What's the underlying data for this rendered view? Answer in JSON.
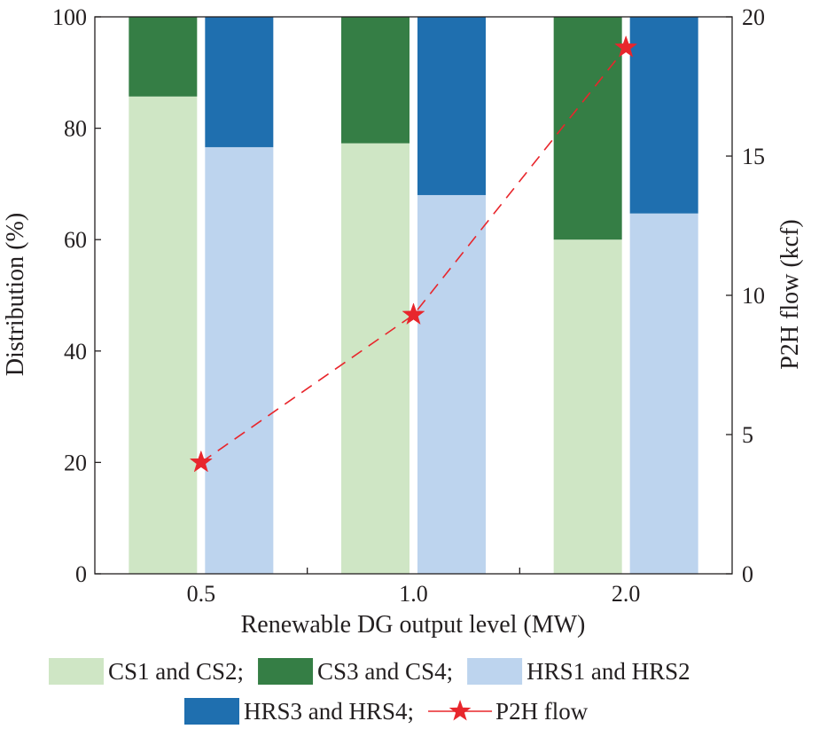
{
  "chart_data": {
    "type": "bar",
    "categories": [
      "0.5",
      "1.0",
      "2.0"
    ],
    "xlabel": "Renewable DG output level (MW)",
    "ylabel": "Distribution (%)",
    "y2label": "P2H flow (kcf)",
    "ylim": [
      0,
      100
    ],
    "y2lim": [
      0,
      20
    ],
    "yticks": [
      "0",
      "20",
      "40",
      "60",
      "80",
      "100"
    ],
    "y2ticks": [
      "0",
      "5",
      "10",
      "15",
      "20"
    ],
    "stacks": [
      {
        "name": "CS",
        "series": [
          {
            "name": "CS1 and CS2",
            "values": [
              85.7,
              77.3,
              60.0
            ],
            "color": "#cfe6c5"
          },
          {
            "name": "CS3 and CS4",
            "values": [
              14.3,
              22.7,
              40.0
            ],
            "color": "#357e45"
          }
        ]
      },
      {
        "name": "HRS",
        "series": [
          {
            "name": "HRS1 and HRS2",
            "values": [
              76.6,
              68.0,
              64.7
            ],
            "color": "#bdd4ee"
          },
          {
            "name": "HRS3 and HRS4",
            "values": [
              23.4,
              32.0,
              35.3
            ],
            "color": "#1f6faf"
          }
        ]
      }
    ],
    "line_series": {
      "name": "P2H flow",
      "axis": "right",
      "values": [
        4.0,
        9.3,
        18.9
      ],
      "color": "#e8262c",
      "style": "dashed",
      "marker": "star"
    },
    "legend": {
      "placement": "bottom",
      "rows": [
        [
          {
            "label": "CS1 and CS2;",
            "color": "#cfe6c5",
            "kind": "box"
          },
          {
            "label": "CS3 and CS4;",
            "color": "#357e45",
            "kind": "box"
          },
          {
            "label": "HRS1 and HRS2",
            "color": "#bdd4ee",
            "kind": "box"
          }
        ],
        [
          {
            "label": "HRS3 and HRS4;",
            "color": "#1f6faf",
            "kind": "box"
          },
          {
            "label": "P2H flow",
            "color": "#e8262c",
            "kind": "line-star"
          }
        ]
      ]
    }
  }
}
